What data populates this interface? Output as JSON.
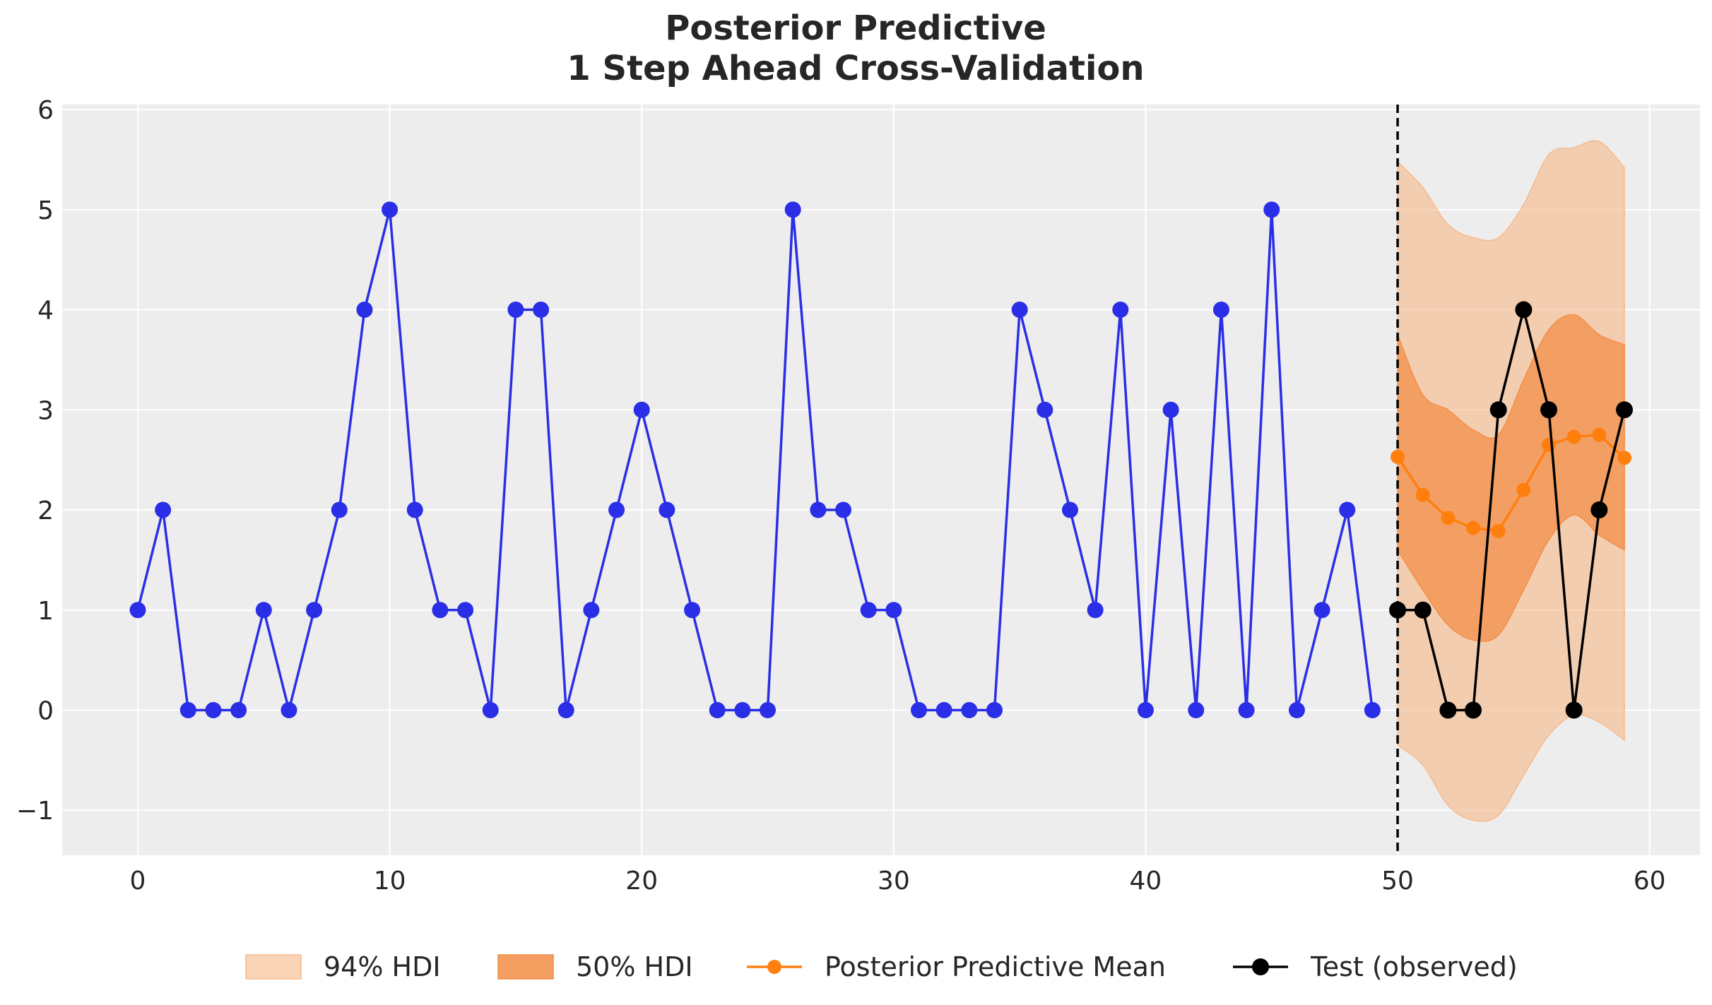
{
  "chart_data": {
    "type": "line",
    "title_lines": [
      "Posterior Predictive",
      "1 Step Ahead Cross-Validation"
    ],
    "xlabel": "",
    "ylabel": "",
    "xlim": [
      -3,
      62
    ],
    "ylim": [
      -1.45,
      6.05
    ],
    "xticks": [
      0,
      10,
      20,
      30,
      40,
      50,
      60
    ],
    "yticks": [
      -1,
      0,
      1,
      2,
      3,
      4,
      5,
      6
    ],
    "grid": true,
    "legend_position": "bottom-center",
    "split_x": 50,
    "train": {
      "x": [
        0,
        1,
        2,
        3,
        4,
        5,
        6,
        7,
        8,
        9,
        10,
        11,
        12,
        13,
        14,
        15,
        16,
        17,
        18,
        19,
        20,
        21,
        22,
        23,
        24,
        25,
        26,
        27,
        28,
        29,
        30,
        31,
        32,
        33,
        34,
        35,
        36,
        37,
        38,
        39,
        40,
        41,
        42,
        43,
        44,
        45,
        46,
        47,
        48,
        49
      ],
      "y": [
        1,
        2,
        0,
        0,
        0,
        1,
        0,
        1,
        2,
        4,
        5,
        2,
        1,
        1,
        0,
        4,
        4,
        0,
        1,
        2,
        3,
        2,
        1,
        0,
        0,
        0,
        5,
        2,
        2,
        1,
        1,
        0,
        0,
        0,
        0,
        4,
        3,
        2,
        1,
        4,
        0,
        3,
        0,
        4,
        0,
        5,
        0,
        1,
        2,
        0
      ]
    },
    "series": [
      {
        "name": "94% HDI",
        "kind": "band",
        "x": [
          50,
          51,
          52,
          53,
          54,
          55,
          56,
          57,
          58,
          59
        ],
        "lower": [
          -0.35,
          -0.55,
          -0.95,
          -1.1,
          -1.05,
          -0.65,
          -0.25,
          -0.05,
          -0.12,
          -0.3
        ],
        "upper": [
          5.48,
          5.22,
          4.85,
          4.72,
          4.72,
          5.05,
          5.55,
          5.62,
          5.68,
          5.42
        ],
        "color": "#f7b98a"
      },
      {
        "name": "50% HDI",
        "kind": "band",
        "x": [
          50,
          51,
          52,
          53,
          54,
          55,
          56,
          57,
          58,
          59
        ],
        "lower": [
          1.6,
          1.2,
          0.85,
          0.7,
          0.75,
          1.2,
          1.7,
          1.95,
          1.75,
          1.6
        ],
        "upper": [
          3.75,
          3.15,
          3.0,
          2.8,
          2.75,
          3.3,
          3.8,
          3.95,
          3.75,
          3.65
        ],
        "color": "#f38d45"
      },
      {
        "name": "Posterior Predictive Mean",
        "kind": "line",
        "x": [
          50,
          51,
          52,
          53,
          54,
          55,
          56,
          57,
          58,
          59
        ],
        "y": [
          2.53,
          2.15,
          1.92,
          1.82,
          1.79,
          2.2,
          2.65,
          2.73,
          2.75,
          2.52
        ],
        "color": "#ff7f0e"
      },
      {
        "name": "Test (observed)",
        "kind": "line",
        "x": [
          50,
          51,
          52,
          53,
          54,
          55,
          56,
          57,
          58,
          59
        ],
        "y": [
          1,
          1,
          0,
          0,
          3,
          4,
          3,
          0,
          2,
          3
        ],
        "color": "#000000"
      }
    ],
    "colors": {
      "train": "#2a2ee6",
      "background": "#ededed"
    }
  }
}
